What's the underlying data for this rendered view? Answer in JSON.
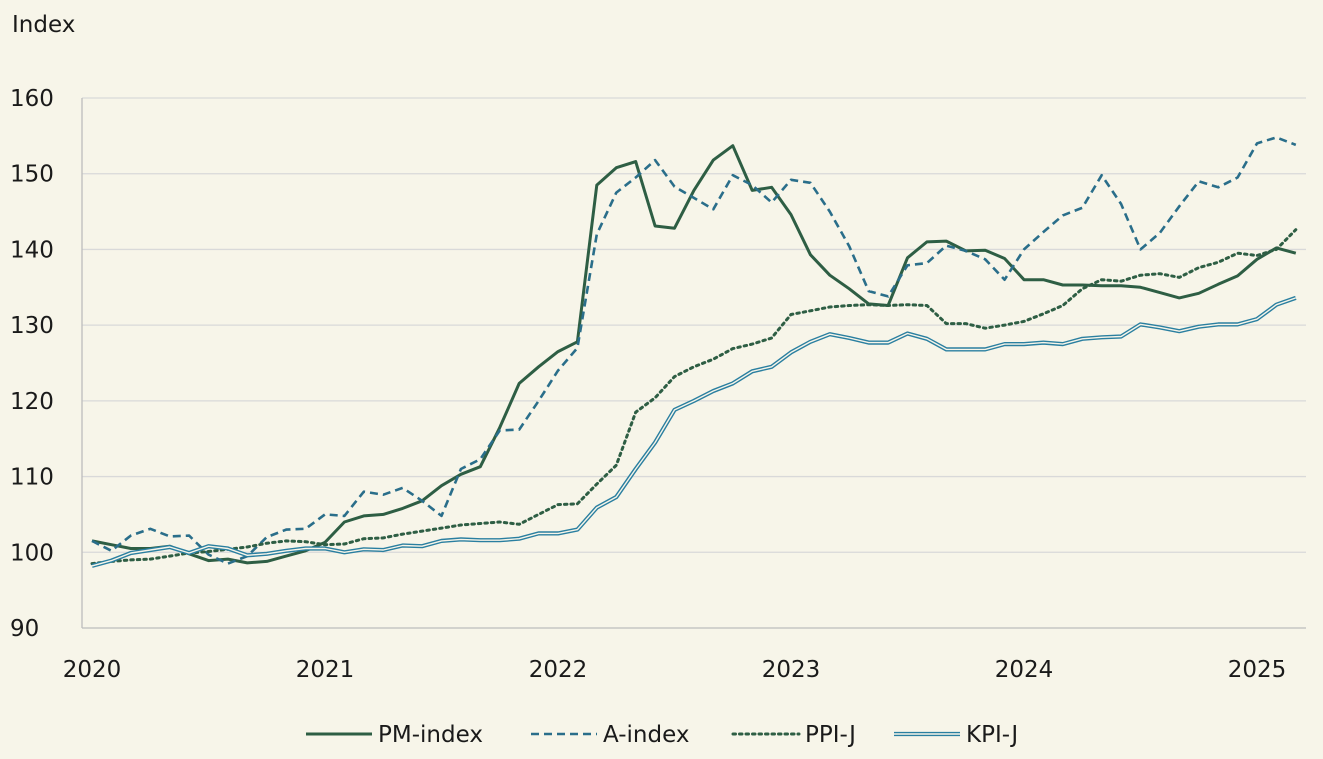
{
  "chart_data": {
    "type": "line",
    "title": "",
    "ylabel": "Index",
    "xlabel": "",
    "ylim": [
      90,
      160
    ],
    "xlim": [
      2020.0,
      2025.2
    ],
    "grid": "horizontal",
    "legend_position": "bottom",
    "y_ticks": [
      "90",
      "100",
      "110",
      "120",
      "130",
      "140",
      "150",
      "160"
    ],
    "x_ticks": [
      "2020",
      "2021",
      "2022",
      "2023",
      "2024",
      "2025"
    ],
    "series": [
      {
        "name": "PM-index",
        "color": "#2e5e44",
        "style": "solid",
        "x": [
          2020.0,
          2020.0833,
          2020.1667,
          2020.25,
          2020.3333,
          2020.4167,
          2020.5,
          2020.5833,
          2020.6667,
          2020.75,
          2020.8333,
          2020.9167,
          2021.0,
          2021.0833,
          2021.1667,
          2021.25,
          2021.3333,
          2021.4167,
          2021.5,
          2021.5833,
          2021.6667,
          2021.75,
          2021.8333,
          2021.9167,
          2022.0,
          2022.0833,
          2022.1667,
          2022.25,
          2022.3333,
          2022.4167,
          2022.5,
          2022.5833,
          2022.6667,
          2022.75,
          2022.8333,
          2022.9167,
          2023.0,
          2023.0833,
          2023.1667,
          2023.25,
          2023.3333,
          2023.4167,
          2023.5,
          2023.5833,
          2023.6667,
          2023.75,
          2023.8333,
          2023.9167,
          2024.0,
          2024.0833,
          2024.1667,
          2024.25,
          2024.3333,
          2024.4167,
          2024.5,
          2024.5833,
          2024.6667,
          2024.75,
          2024.8333,
          2024.9167,
          2025.0,
          2025.0833,
          2025.1667
        ],
        "y": [
          101.5,
          101.0,
          100.5,
          100.5,
          100.8,
          99.8,
          98.9,
          99.1,
          98.6,
          98.8,
          99.5,
          100.2,
          101.3,
          104.0,
          104.8,
          105.0,
          105.8,
          106.8,
          108.8,
          110.3,
          111.3,
          116.5,
          122.3,
          124.5,
          126.5,
          127.8,
          148.5,
          150.8,
          151.6,
          143.1,
          142.8,
          147.8,
          151.8,
          153.7,
          147.8,
          148.2,
          144.6,
          139.3,
          136.6,
          134.8,
          132.8,
          132.6,
          138.9,
          141.0,
          141.1,
          139.8,
          139.9,
          138.8,
          136.0,
          136.0,
          135.3,
          135.3,
          135.2,
          135.2,
          135.0,
          134.3,
          133.6,
          134.2,
          135.4,
          136.5,
          138.7,
          140.2,
          139.5
        ]
      },
      {
        "name": "A-index",
        "color": "#2a6e8a",
        "style": "dashed",
        "x": [
          2020.0,
          2020.0833,
          2020.1667,
          2020.25,
          2020.3333,
          2020.4167,
          2020.5,
          2020.5833,
          2020.6667,
          2020.75,
          2020.8333,
          2020.9167,
          2021.0,
          2021.0833,
          2021.1667,
          2021.25,
          2021.3333,
          2021.4167,
          2021.5,
          2021.5833,
          2021.6667,
          2021.75,
          2021.8333,
          2021.9167,
          2022.0,
          2022.0833,
          2022.1667,
          2022.25,
          2022.3333,
          2022.4167,
          2022.5,
          2022.5833,
          2022.6667,
          2022.75,
          2022.8333,
          2022.9167,
          2023.0,
          2023.0833,
          2023.1667,
          2023.25,
          2023.3333,
          2023.4167,
          2023.5,
          2023.5833,
          2023.6667,
          2023.75,
          2023.8333,
          2023.9167,
          2024.0,
          2024.0833,
          2024.1667,
          2024.25,
          2024.3333,
          2024.4167,
          2024.5,
          2024.5833,
          2024.6667,
          2024.75,
          2024.8333,
          2024.9167,
          2025.0,
          2025.0833,
          2025.1667
        ],
        "y": [
          101.5,
          100.2,
          102.2,
          103.1,
          102.1,
          102.2,
          99.7,
          98.5,
          99.5,
          102.0,
          103.0,
          103.1,
          105.0,
          104.8,
          108.0,
          107.6,
          108.5,
          106.8,
          104.8,
          111.0,
          112.3,
          116.1,
          116.2,
          120.0,
          124.0,
          127.0,
          142.0,
          147.5,
          149.5,
          151.8,
          148.3,
          146.8,
          145.3,
          149.8,
          148.5,
          146.2,
          149.2,
          148.8,
          145.0,
          140.4,
          134.5,
          133.8,
          137.9,
          138.2,
          140.5,
          139.8,
          138.7,
          136.0,
          140.0,
          142.3,
          144.5,
          145.5,
          149.8,
          146.0,
          140.0,
          142.2,
          145.7,
          149.0,
          148.2,
          149.5,
          154.0,
          154.8,
          153.8
        ]
      },
      {
        "name": "PPI-J",
        "color": "#2e5e44",
        "style": "dotted",
        "x": [
          2020.0,
          2020.0833,
          2020.1667,
          2020.25,
          2020.3333,
          2020.4167,
          2020.5,
          2020.5833,
          2020.6667,
          2020.75,
          2020.8333,
          2020.9167,
          2021.0,
          2021.0833,
          2021.1667,
          2021.25,
          2021.3333,
          2021.4167,
          2021.5,
          2021.5833,
          2021.6667,
          2021.75,
          2021.8333,
          2021.9167,
          2022.0,
          2022.0833,
          2022.1667,
          2022.25,
          2022.3333,
          2022.4167,
          2022.5,
          2022.5833,
          2022.6667,
          2022.75,
          2022.8333,
          2022.9167,
          2023.0,
          2023.0833,
          2023.1667,
          2023.25,
          2023.3333,
          2023.4167,
          2023.5,
          2023.5833,
          2023.6667,
          2023.75,
          2023.8333,
          2023.9167,
          2024.0,
          2024.0833,
          2024.1667,
          2024.25,
          2024.3333,
          2024.4167,
          2024.5,
          2024.5833,
          2024.6667,
          2024.75,
          2024.8333,
          2024.9167,
          2025.0,
          2025.0833,
          2025.1667
        ],
        "y": [
          98.5,
          98.8,
          99.0,
          99.1,
          99.5,
          99.9,
          100.1,
          100.4,
          100.7,
          101.2,
          101.5,
          101.4,
          101.0,
          101.1,
          101.8,
          101.9,
          102.4,
          102.8,
          103.2,
          103.6,
          103.8,
          104.0,
          103.7,
          105.0,
          106.3,
          106.4,
          109.0,
          111.5,
          118.5,
          120.4,
          123.2,
          124.5,
          125.5,
          126.9,
          127.5,
          128.3,
          131.4,
          131.9,
          132.4,
          132.6,
          132.7,
          132.6,
          132.7,
          132.6,
          130.2,
          130.2,
          129.6,
          130.0,
          130.5,
          131.5,
          132.6,
          134.8,
          136.0,
          135.8,
          136.6,
          136.8,
          136.3,
          137.6,
          138.3,
          139.5,
          139.2,
          140.0,
          142.6
        ]
      },
      {
        "name": "KPI-J",
        "color": "#2a7fa0",
        "style": "double",
        "x": [
          2020.0,
          2020.0833,
          2020.1667,
          2020.25,
          2020.3333,
          2020.4167,
          2020.5,
          2020.5833,
          2020.6667,
          2020.75,
          2020.8333,
          2020.9167,
          2021.0,
          2021.0833,
          2021.1667,
          2021.25,
          2021.3333,
          2021.4167,
          2021.5,
          2021.5833,
          2021.6667,
          2021.75,
          2021.8333,
          2021.9167,
          2022.0,
          2022.0833,
          2022.1667,
          2022.25,
          2022.3333,
          2022.4167,
          2022.5,
          2022.5833,
          2022.6667,
          2022.75,
          2022.8333,
          2022.9167,
          2023.0,
          2023.0833,
          2023.1667,
          2023.25,
          2023.3333,
          2023.4167,
          2023.5,
          2023.5833,
          2023.6667,
          2023.75,
          2023.8333,
          2023.9167,
          2024.0,
          2024.0833,
          2024.1667,
          2024.25,
          2024.3333,
          2024.4167,
          2024.5,
          2024.5833,
          2024.6667,
          2024.75,
          2024.8333,
          2024.9167,
          2025.0,
          2025.0833,
          2025.1667
        ],
        "y": [
          98.2,
          98.9,
          99.9,
          100.3,
          100.7,
          99.9,
          100.8,
          100.5,
          99.6,
          99.8,
          100.2,
          100.5,
          100.5,
          100.0,
          100.4,
          100.3,
          100.9,
          100.8,
          101.5,
          101.7,
          101.6,
          101.6,
          101.8,
          102.5,
          102.5,
          103.0,
          105.9,
          107.3,
          111.0,
          114.5,
          118.8,
          120.0,
          121.3,
          122.3,
          123.9,
          124.5,
          126.4,
          127.8,
          128.8,
          128.3,
          127.7,
          127.7,
          128.9,
          128.2,
          126.8,
          126.8,
          126.8,
          127.5,
          127.5,
          127.7,
          127.5,
          128.2,
          128.4,
          128.5,
          130.1,
          129.7,
          129.2,
          129.8,
          130.1,
          130.1,
          130.8,
          132.7,
          133.6
        ]
      }
    ]
  }
}
